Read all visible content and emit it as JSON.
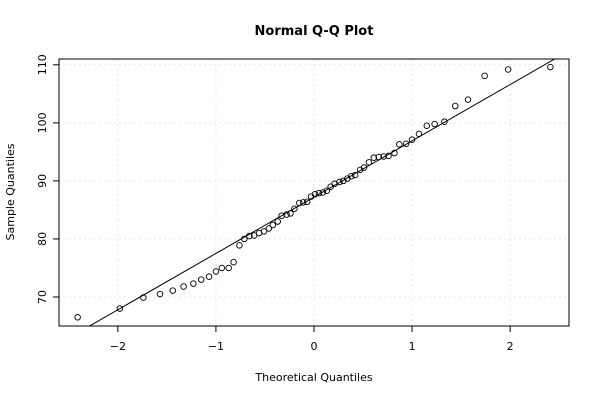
{
  "chart_data": {
    "type": "scatter",
    "title": "Normal Q-Q Plot",
    "xlabel": "Theoretical Quantiles",
    "ylabel": "Sample Quantiles",
    "xlim": [
      -2.6,
      2.6
    ],
    "ylim": [
      65,
      111
    ],
    "x_ticks": [
      -2,
      -1,
      0,
      1,
      2
    ],
    "x_tick_labels": [
      "−2",
      "−1",
      "0",
      "1",
      "2"
    ],
    "y_ticks": [
      70,
      80,
      90,
      100,
      110
    ],
    "y_tick_labels": [
      "70",
      "80",
      "90",
      "100",
      "110"
    ],
    "grid": true,
    "reference_line": {
      "slope": 9.7,
      "intercept": 87.2
    },
    "points": [
      [
        -2.41,
        66.5
      ],
      [
        -1.98,
        68.0
      ],
      [
        -1.74,
        69.9
      ],
      [
        -1.57,
        70.5
      ],
      [
        -1.44,
        71.1
      ],
      [
        -1.33,
        71.8
      ],
      [
        -1.23,
        72.3
      ],
      [
        -1.15,
        73.0
      ],
      [
        -1.07,
        73.5
      ],
      [
        -1.0,
        74.4
      ],
      [
        -0.94,
        75.0
      ],
      [
        -0.87,
        75.0
      ],
      [
        -0.82,
        76.0
      ],
      [
        -0.76,
        78.9
      ],
      [
        -0.71,
        80.0
      ],
      [
        -0.66,
        80.5
      ],
      [
        -0.61,
        80.6
      ],
      [
        -0.56,
        81.0
      ],
      [
        -0.51,
        81.3
      ],
      [
        -0.46,
        81.8
      ],
      [
        -0.42,
        82.4
      ],
      [
        -0.37,
        83.0
      ],
      [
        -0.33,
        84.0
      ],
      [
        -0.28,
        84.2
      ],
      [
        -0.24,
        84.4
      ],
      [
        -0.2,
        85.2
      ],
      [
        -0.15,
        86.2
      ],
      [
        -0.11,
        86.3
      ],
      [
        -0.07,
        86.4
      ],
      [
        -0.03,
        87.3
      ],
      [
        0.01,
        87.7
      ],
      [
        0.05,
        87.9
      ],
      [
        0.09,
        88.0
      ],
      [
        0.13,
        88.3
      ],
      [
        0.17,
        89.0
      ],
      [
        0.21,
        89.5
      ],
      [
        0.26,
        89.8
      ],
      [
        0.3,
        90.0
      ],
      [
        0.34,
        90.4
      ],
      [
        0.38,
        90.8
      ],
      [
        0.42,
        91.0
      ],
      [
        0.47,
        91.9
      ],
      [
        0.51,
        92.3
      ],
      [
        0.56,
        93.2
      ],
      [
        0.61,
        94.0
      ],
      [
        0.66,
        94.1
      ],
      [
        0.71,
        94.2
      ],
      [
        0.76,
        94.3
      ],
      [
        0.82,
        94.8
      ],
      [
        0.87,
        96.3
      ],
      [
        0.94,
        96.4
      ],
      [
        1.0,
        97.1
      ],
      [
        1.07,
        98.1
      ],
      [
        1.15,
        99.5
      ],
      [
        1.23,
        99.8
      ],
      [
        1.33,
        100.2
      ],
      [
        1.44,
        102.9
      ],
      [
        1.57,
        104.0
      ],
      [
        1.74,
        108.1
      ],
      [
        1.98,
        109.2
      ],
      [
        2.41,
        109.6
      ]
    ]
  }
}
